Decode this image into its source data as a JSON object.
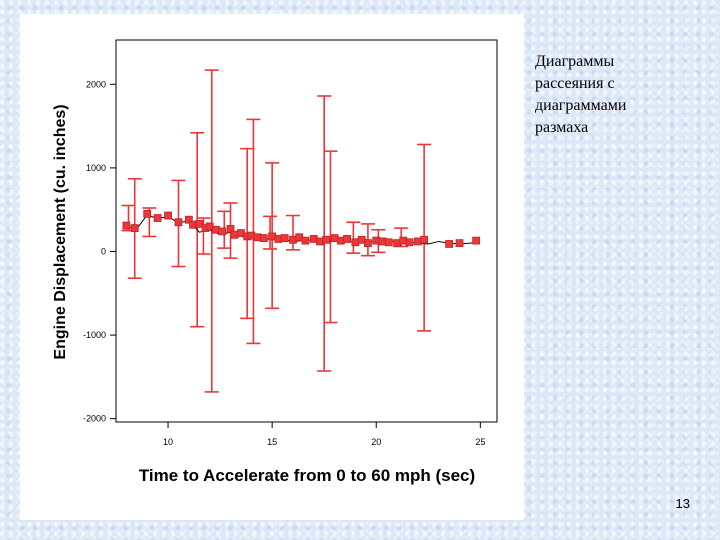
{
  "slide": {
    "side_text": "Диаграммы\nрассеяния с\nдиаграммами\nразмаха",
    "page_number": "13"
  },
  "colors": {
    "marker": "#e8383a",
    "marker_edge": "#c22326",
    "line": "#000000",
    "frame": "#000000",
    "slide_background": "#dde8f7"
  },
  "chart_data": {
    "type": "scatter",
    "xlabel": "Time to Accelerate from 0 to 60 mph (sec)",
    "ylabel": "Engine Displacement (cu. inches)",
    "xlim": [
      7.5,
      25.8
    ],
    "ylim": [
      -2040,
      2530
    ],
    "xticks": [
      10,
      15,
      20,
      25
    ],
    "xtick_labels": [
      "10",
      "15",
      "20",
      "25"
    ],
    "yticks": [
      -2000,
      -1000,
      0,
      1000,
      2000
    ],
    "ytick_labels": [
      "-2000",
      "-1000",
      "0",
      "1000",
      "2000"
    ],
    "grid": false,
    "legend": "none",
    "line_x": [
      8,
      8.5,
      9,
      9.5,
      10,
      10.5,
      11,
      11.5,
      12,
      12.5,
      13,
      13.5,
      14,
      14.5,
      15,
      15.5,
      16,
      16.5,
      17,
      17.5,
      18,
      18.5,
      19,
      19.5,
      20,
      20.5,
      21,
      21.5,
      22,
      22.5,
      23,
      23.5,
      24,
      24.5,
      24.8
    ],
    "line_y": [
      300,
      270,
      440,
      390,
      420,
      340,
      370,
      230,
      260,
      200,
      230,
      180,
      160,
      170,
      140,
      150,
      120,
      130,
      140,
      110,
      150,
      130,
      110,
      140,
      100,
      130,
      120,
      110,
      100,
      90,
      120,
      100,
      90,
      100,
      110
    ],
    "markers": {
      "x": [
        8.0,
        8.4,
        9.0,
        9.5,
        10.0,
        10.5,
        11.0,
        11.2,
        11.5,
        11.8,
        12.0,
        12.3,
        12.6,
        13.0,
        13.2,
        13.5,
        13.8,
        14.0,
        14.3,
        14.6,
        15.0,
        15.3,
        15.6,
        16.0,
        16.3,
        16.6,
        17.0,
        17.3,
        17.6,
        18.0,
        18.3,
        18.6,
        19.0,
        19.3,
        19.6,
        20.0,
        20.3,
        20.6,
        21.0,
        21.3,
        21.6,
        22.0,
        22.3,
        23.5,
        24.0,
        24.8
      ],
      "y": [
        310,
        280,
        450,
        400,
        430,
        350,
        380,
        320,
        330,
        280,
        300,
        260,
        240,
        270,
        200,
        220,
        180,
        190,
        170,
        160,
        180,
        150,
        160,
        140,
        170,
        130,
        150,
        120,
        140,
        160,
        130,
        150,
        110,
        140,
        100,
        130,
        120,
        110,
        100,
        130,
        110,
        120,
        140,
        90,
        100,
        130
      ]
    },
    "ranges": [
      {
        "x": 8.1,
        "low": 250,
        "high": 550
      },
      {
        "x": 8.4,
        "low": -320,
        "high": 870
      },
      {
        "x": 10.5,
        "low": -180,
        "high": 850
      },
      {
        "x": 11.4,
        "low": -900,
        "high": 1420
      },
      {
        "x": 12.1,
        "low": -1680,
        "high": 2170
      },
      {
        "x": 13.0,
        "low": -80,
        "high": 580
      },
      {
        "x": 13.8,
        "low": -800,
        "high": 1230
      },
      {
        "x": 14.1,
        "low": -1100,
        "high": 1580
      },
      {
        "x": 15.0,
        "low": -680,
        "high": 1060
      },
      {
        "x": 17.5,
        "low": -1430,
        "high": 1860
      },
      {
        "x": 17.8,
        "low": -850,
        "high": 1200
      },
      {
        "x": 22.3,
        "low": -950,
        "high": 1280
      },
      {
        "x": 11.7,
        "low": -30,
        "high": 400
      },
      {
        "x": 16.0,
        "low": 20,
        "high": 430
      },
      {
        "x": 18.9,
        "low": -20,
        "high": 350
      },
      {
        "x": 20.1,
        "low": -10,
        "high": 260
      },
      {
        "x": 9.1,
        "low": 180,
        "high": 520
      },
      {
        "x": 12.7,
        "low": 40,
        "high": 480
      },
      {
        "x": 14.9,
        "low": 30,
        "high": 420
      },
      {
        "x": 19.6,
        "low": -50,
        "high": 330
      },
      {
        "x": 21.2,
        "low": 60,
        "high": 280
      }
    ]
  }
}
